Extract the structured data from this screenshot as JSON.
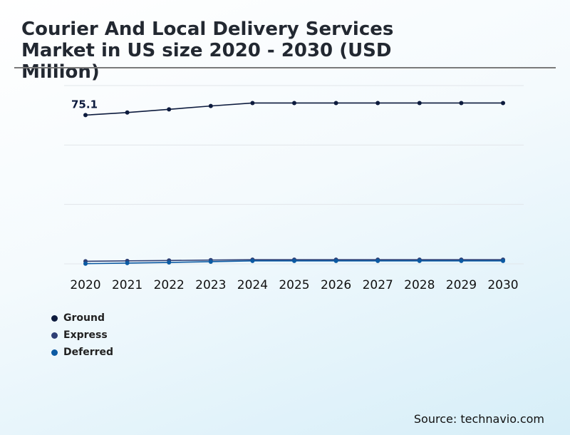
{
  "title": "Courier And Local Delivery Services Market in US size 2020 - 2030 (USD Million)",
  "source": "Source: technavio.com",
  "chart_data": {
    "type": "line",
    "title": "Courier And Local Delivery Services Market in US size 2020 - 2030 (USD Million)",
    "xlabel": "",
    "ylabel": "",
    "x": [
      "2020",
      "2021",
      "2022",
      "2023",
      "2024",
      "2025",
      "2026",
      "2027",
      "2028",
      "2029",
      "2030"
    ],
    "ylim": [
      0,
      90
    ],
    "grid": true,
    "legend_position": "bottom-left",
    "series": [
      {
        "name": "Ground",
        "color": "#0d1b3e",
        "values": [
          75.1,
          76.4,
          78.0,
          79.7,
          81.2,
          81.2,
          81.2,
          81.2,
          81.2,
          81.2,
          81.2
        ]
      },
      {
        "name": "Express",
        "color": "#2e3f75",
        "values": [
          1.3,
          1.5,
          1.7,
          1.9,
          2.1,
          2.1,
          2.1,
          2.1,
          2.1,
          2.1,
          2.1
        ]
      },
      {
        "name": "Deferred",
        "color": "#0b5aa3",
        "values": [
          0.1,
          0.4,
          0.7,
          1.1,
          1.5,
          1.5,
          1.5,
          1.5,
          1.5,
          1.5,
          1.5
        ]
      }
    ],
    "annotations": [
      {
        "series": "Ground",
        "x": "2020",
        "label": "75.1"
      }
    ]
  }
}
